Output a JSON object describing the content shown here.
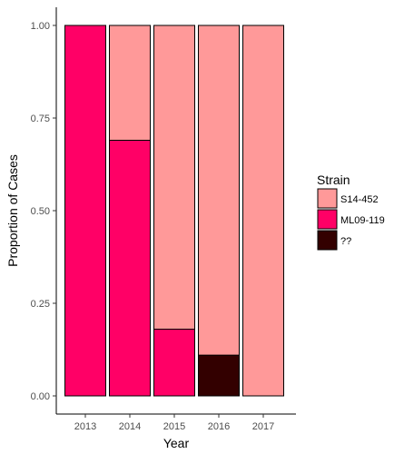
{
  "chart_data": {
    "type": "bar",
    "stacked": true,
    "categories": [
      "2013",
      "2014",
      "2015",
      "2016",
      "2017"
    ],
    "series": [
      {
        "name": "S14-452",
        "color": "#FF9999",
        "values": [
          0.0,
          0.31,
          0.82,
          0.89,
          1.0
        ]
      },
      {
        "name": "ML09-119",
        "color": "#FF0066",
        "values": [
          1.0,
          0.69,
          0.18,
          0.0,
          0.0
        ]
      },
      {
        "name": "??",
        "color": "#330000",
        "values": [
          0.0,
          0.0,
          0.0,
          0.11,
          0.0
        ]
      }
    ],
    "xlabel": "Year",
    "ylabel": "Proportion of Cases",
    "ylim": [
      0,
      1
    ],
    "yticks": [
      "0.00",
      "0.25",
      "0.50",
      "0.75",
      "1.00"
    ],
    "legend": {
      "title": "Strain",
      "placement": "right"
    },
    "grid": false
  }
}
